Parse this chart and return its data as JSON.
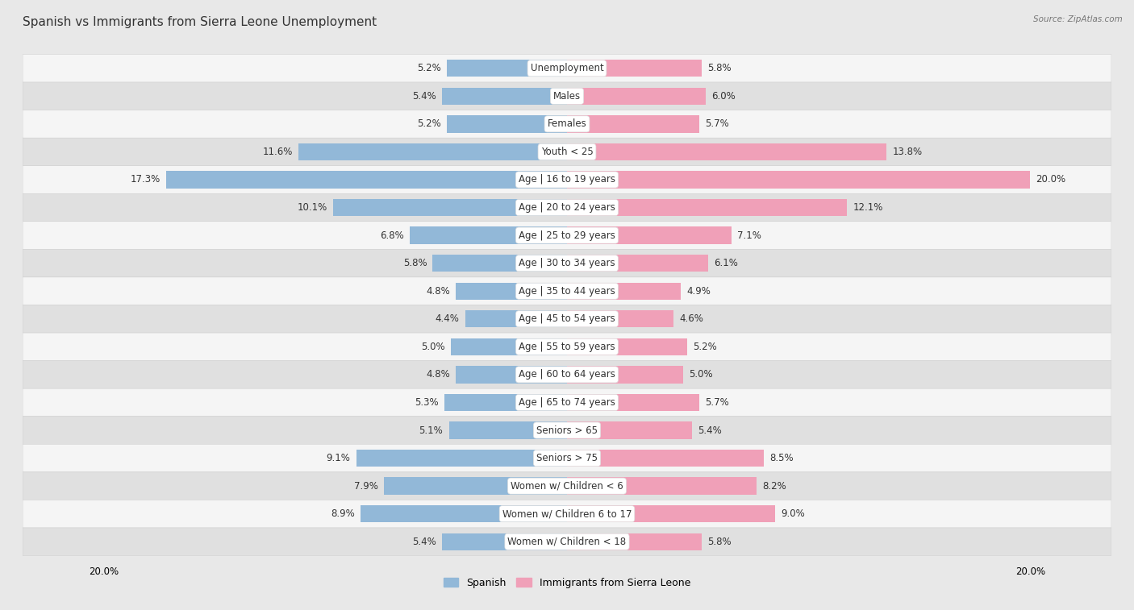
{
  "title": "Spanish vs Immigrants from Sierra Leone Unemployment",
  "source": "Source: ZipAtlas.com",
  "categories": [
    "Unemployment",
    "Males",
    "Females",
    "Youth < 25",
    "Age | 16 to 19 years",
    "Age | 20 to 24 years",
    "Age | 25 to 29 years",
    "Age | 30 to 34 years",
    "Age | 35 to 44 years",
    "Age | 45 to 54 years",
    "Age | 55 to 59 years",
    "Age | 60 to 64 years",
    "Age | 65 to 74 years",
    "Seniors > 65",
    "Seniors > 75",
    "Women w/ Children < 6",
    "Women w/ Children 6 to 17",
    "Women w/ Children < 18"
  ],
  "spanish": [
    5.2,
    5.4,
    5.2,
    11.6,
    17.3,
    10.1,
    6.8,
    5.8,
    4.8,
    4.4,
    5.0,
    4.8,
    5.3,
    5.1,
    9.1,
    7.9,
    8.9,
    5.4
  ],
  "immigrants": [
    5.8,
    6.0,
    5.7,
    13.8,
    20.0,
    12.1,
    7.1,
    6.1,
    4.9,
    4.6,
    5.2,
    5.0,
    5.7,
    5.4,
    8.5,
    8.2,
    9.0,
    5.8
  ],
  "spanish_color": "#92b8d8",
  "immigrants_color": "#f0a0b8",
  "max_value": 20.0,
  "background_color": "#e8e8e8",
  "row_color_odd": "#f5f5f5",
  "row_color_even": "#e0e0e0",
  "title_fontsize": 11,
  "label_fontsize": 8.5,
  "value_fontsize": 8.5,
  "legend_label_spanish": "Spanish",
  "legend_label_immigrants": "Immigrants from Sierra Leone"
}
